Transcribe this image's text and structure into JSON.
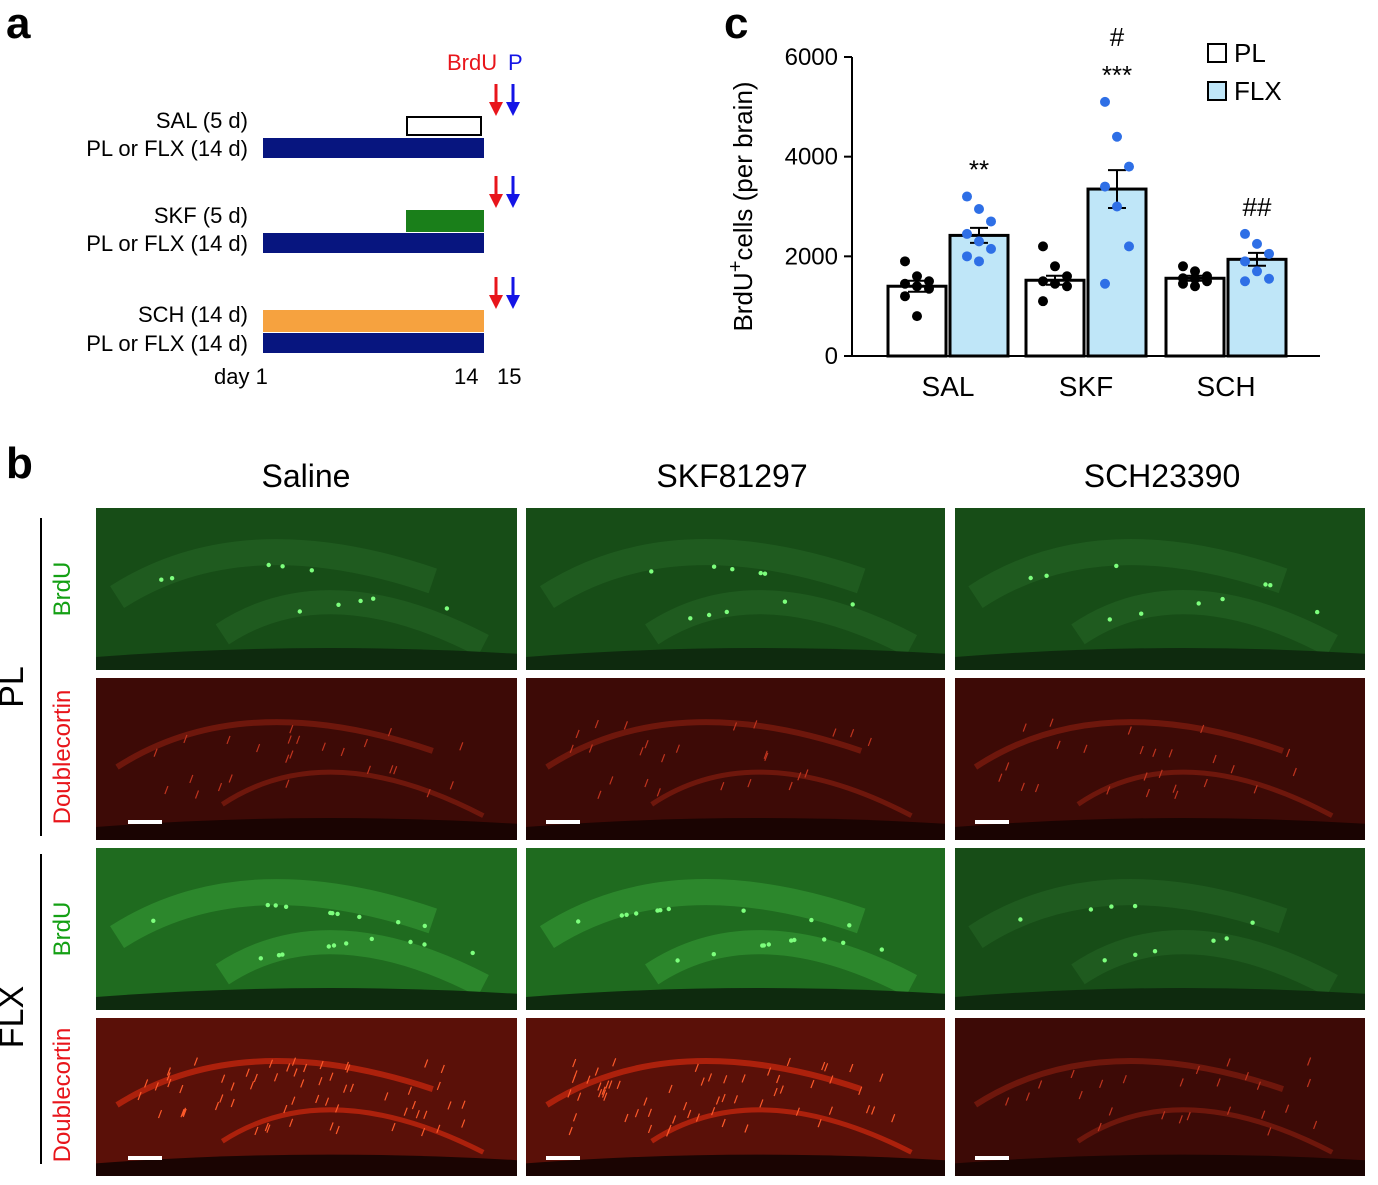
{
  "panel_a": {
    "letter": "a",
    "arrow_label_brdu": "BrdU",
    "arrow_label_p": "P",
    "groups": [
      {
        "top_label": "SAL (5 d)",
        "bottom_label": "PL or FLX (14 d)",
        "top_color": "#ffffff"
      },
      {
        "top_label": "SKF (5 d)",
        "bottom_label": "PL or FLX (14 d)",
        "top_color": "#1a7f1a"
      },
      {
        "top_label": "SCH (14 d)",
        "bottom_label": "PL or FLX (14 d)",
        "top_color": "#f6a23f"
      }
    ],
    "bottom_bar_color": "#07157f",
    "brdu_color": "#e8151b",
    "p_color": "#1414e6",
    "axis_day_label": "day 1",
    "axis_14": "14",
    "axis_15": "15"
  },
  "panel_c": {
    "letter": "c"
  },
  "chart_data": {
    "type": "bar",
    "title": "",
    "ylabel_main": "BrdU",
    "ylabel_sup": "+",
    "ylabel_rest": "cells (per brain)",
    "xlabel": "",
    "categories": [
      "SAL",
      "SKF",
      "SCH"
    ],
    "ylim": [
      0,
      6000
    ],
    "yticks": [
      0,
      2000,
      4000,
      6000
    ],
    "ytick_labels": [
      "0",
      "2000",
      "4000",
      "6000"
    ],
    "legend": [
      {
        "name": "PL",
        "color": "#ffffff"
      },
      {
        "name": "FLX",
        "color": "#bfe6f8"
      }
    ],
    "series": [
      {
        "name": "PL",
        "values": [
          1400,
          1520,
          1560
        ],
        "sem": [
          110,
          90,
          50
        ],
        "points": [
          [
            1900,
            1600,
            1500,
            1450,
            1400,
            1350,
            1200,
            800
          ],
          [
            2200,
            1800,
            1600,
            1500,
            1450,
            1400,
            1100
          ],
          [
            1800,
            1700,
            1600,
            1560,
            1550,
            1500,
            1450,
            1400
          ]
        ],
        "point_color": "#000000"
      },
      {
        "name": "FLX",
        "values": [
          2420,
          3350,
          1940
        ],
        "sem": [
          150,
          380,
          130
        ],
        "points": [
          [
            3200,
            2950,
            2700,
            2450,
            2300,
            2150,
            2000,
            1900
          ],
          [
            5100,
            4400,
            3800,
            3400,
            3000,
            2200,
            1450
          ],
          [
            2450,
            2250,
            2050,
            1900,
            1700,
            1550,
            1500
          ]
        ],
        "point_color": "#2e6fe6"
      }
    ],
    "annotations": [
      {
        "category": "SAL",
        "lines": [
          "**"
        ]
      },
      {
        "category": "SKF",
        "lines": [
          "#",
          "***"
        ]
      },
      {
        "category": "SCH",
        "lines": [
          "##"
        ]
      }
    ]
  },
  "panel_b": {
    "letter": "b",
    "columns": [
      "Saline",
      "SKF81297",
      "SCH23390"
    ],
    "groups": [
      {
        "label": "PL",
        "stains": [
          "BrdU",
          "Doublecortin"
        ]
      },
      {
        "label": "FLX",
        "stains": [
          "BrdU",
          "Doublecortin"
        ]
      }
    ],
    "brdu_color": "#14a014",
    "dcx_color": "#e8151b"
  }
}
